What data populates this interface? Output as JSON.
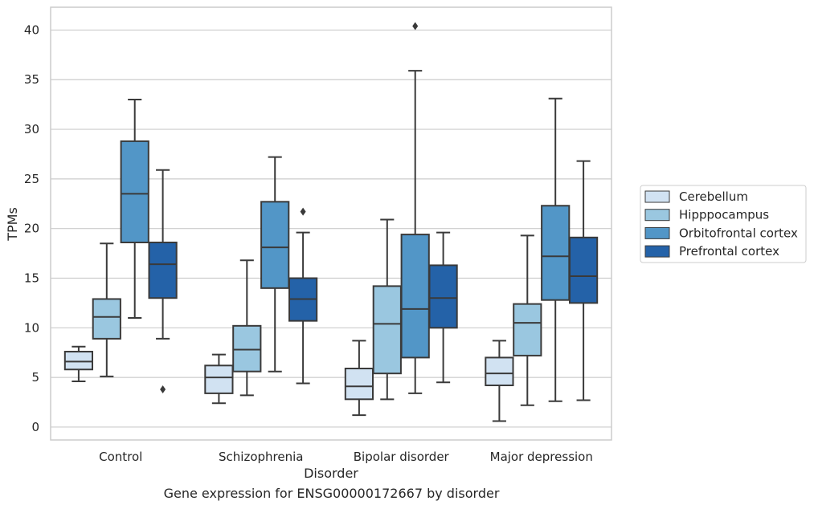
{
  "caption": "Gene expression for ENSG00000172667 by disorder",
  "chart_data": {
    "type": "box",
    "xlabel": "Disorder",
    "ylabel": "TPMs",
    "ylim": [
      -1.3,
      42.3
    ],
    "yticks": [
      0,
      5,
      10,
      15,
      20,
      25,
      30,
      35,
      40
    ],
    "grid": "horizontal",
    "legend_position": "right",
    "categories": [
      "Control",
      "Schizophrenia",
      "Bipolar disorder",
      "Major depression"
    ],
    "series": [
      {
        "name": "Cerebellum",
        "color": "#d1e2f2",
        "boxes": [
          {
            "whislo": 4.6,
            "q1": 5.8,
            "med": 6.6,
            "q3": 7.6,
            "whishi": 8.1,
            "fliers": []
          },
          {
            "whislo": 2.4,
            "q1": 3.4,
            "med": 5.0,
            "q3": 6.2,
            "whishi": 7.3,
            "fliers": []
          },
          {
            "whislo": 1.2,
            "q1": 2.8,
            "med": 4.1,
            "q3": 5.9,
            "whishi": 8.7,
            "fliers": []
          },
          {
            "whislo": 0.6,
            "q1": 4.2,
            "med": 5.4,
            "q3": 7.0,
            "whishi": 8.7,
            "fliers": []
          }
        ]
      },
      {
        "name": "Hipppocampus",
        "color": "#9ac7e0",
        "boxes": [
          {
            "whislo": 5.1,
            "q1": 8.9,
            "med": 11.1,
            "q3": 12.9,
            "whishi": 18.5,
            "fliers": []
          },
          {
            "whislo": 3.2,
            "q1": 5.6,
            "med": 7.8,
            "q3": 10.2,
            "whishi": 16.8,
            "fliers": []
          },
          {
            "whislo": 2.8,
            "q1": 5.4,
            "med": 10.4,
            "q3": 14.2,
            "whishi": 20.9,
            "fliers": []
          },
          {
            "whislo": 2.2,
            "q1": 7.2,
            "med": 10.5,
            "q3": 12.4,
            "whishi": 19.3,
            "fliers": []
          }
        ]
      },
      {
        "name": "Orbitofrontal cortex",
        "color": "#5296c7",
        "boxes": [
          {
            "whislo": 11.0,
            "q1": 18.6,
            "med": 23.5,
            "q3": 28.8,
            "whishi": 33.0,
            "fliers": []
          },
          {
            "whislo": 5.6,
            "q1": 14.0,
            "med": 18.1,
            "q3": 22.7,
            "whishi": 27.2,
            "fliers": []
          },
          {
            "whislo": 3.4,
            "q1": 7.0,
            "med": 11.9,
            "q3": 19.4,
            "whishi": 35.9,
            "fliers": [
              40.4
            ]
          },
          {
            "whislo": 2.6,
            "q1": 12.8,
            "med": 17.2,
            "q3": 22.3,
            "whishi": 33.1,
            "fliers": []
          }
        ]
      },
      {
        "name": "Prefrontal cortex",
        "color": "#2462a8",
        "boxes": [
          {
            "whislo": 8.9,
            "q1": 13.0,
            "med": 16.4,
            "q3": 18.6,
            "whishi": 25.9,
            "fliers": [
              3.8
            ]
          },
          {
            "whislo": 4.4,
            "q1": 10.7,
            "med": 12.9,
            "q3": 15.0,
            "whishi": 19.6,
            "fliers": [
              21.7
            ]
          },
          {
            "whislo": 4.5,
            "q1": 10.0,
            "med": 13.0,
            "q3": 16.3,
            "whishi": 19.6,
            "fliers": []
          },
          {
            "whislo": 2.7,
            "q1": 12.5,
            "med": 15.2,
            "q3": 19.1,
            "whishi": 26.8,
            "fliers": []
          }
        ]
      }
    ]
  }
}
